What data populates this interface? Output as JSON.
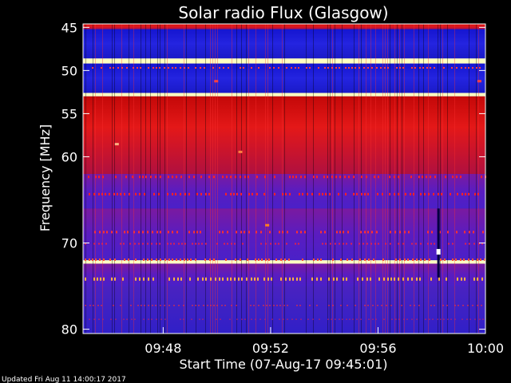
{
  "chart_data": {
    "type": "heatmap",
    "title": "Solar radio Flux (Glasgow)",
    "xlabel": "Start Time (07-Aug-17 09:45:01)",
    "ylabel": "Frequency [MHz]",
    "x_ticks": [
      "09:48",
      "09:52",
      "09:56",
      "10:00"
    ],
    "y_ticks": [
      "45",
      "50",
      "55",
      "60",
      "70",
      "80"
    ],
    "footer": "Updated Fri Aug 11 14:00:17 2017",
    "colors": {
      "background": "#000000",
      "low": "#1010c8",
      "mid": "#6a1ab0",
      "high": "#e01010",
      "peak": "#ffffc0"
    },
    "bands": [
      {
        "freq_from": 44.6,
        "freq_to": 45.2,
        "level": "high"
      },
      {
        "freq_from": 45.2,
        "freq_to": 48.6,
        "level": "low"
      },
      {
        "freq_from": 48.6,
        "freq_to": 49.2,
        "level": "peak"
      },
      {
        "freq_from": 49.2,
        "freq_to": 52.6,
        "level": "low"
      },
      {
        "freq_from": 52.6,
        "freq_to": 53.0,
        "level": "peak"
      },
      {
        "freq_from": 53.0,
        "freq_to": 62.0,
        "level": "high"
      },
      {
        "freq_from": 62.0,
        "freq_to": 66.0,
        "level": "mid"
      },
      {
        "freq_from": 66.0,
        "freq_to": 72.0,
        "level": "mid"
      },
      {
        "freq_from": 72.0,
        "freq_to": 72.4,
        "level": "peak"
      },
      {
        "freq_from": 72.4,
        "freq_to": 75.0,
        "level": "mid"
      },
      {
        "freq_from": 75.0,
        "freq_to": 80.5,
        "level": "low"
      }
    ],
    "burst": {
      "time": "09:58",
      "freq_from": 66.0,
      "freq_to": 74.0
    }
  }
}
